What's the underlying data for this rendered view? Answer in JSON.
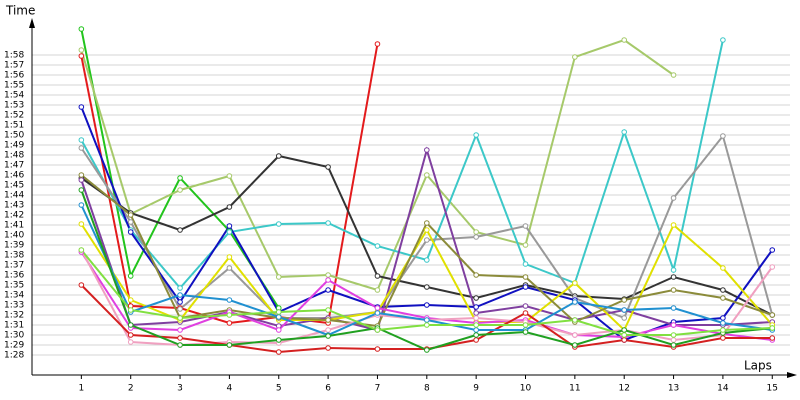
{
  "chart_data": {
    "type": "line",
    "ylabel": "Time",
    "xlabel": "Laps",
    "x": [
      1,
      2,
      3,
      4,
      5,
      6,
      7,
      8,
      9,
      10,
      11,
      12,
      13,
      14,
      15
    ],
    "xlim": [
      0,
      15.4
    ],
    "xticks": [
      1,
      2,
      3,
      4,
      5,
      6,
      7,
      8,
      9,
      10,
      11,
      12,
      13,
      14,
      15
    ],
    "ylim": [
      86,
      121
    ],
    "yticks": [
      {
        "value": 88,
        "label": "1:28"
      },
      {
        "value": 89,
        "label": "1:29"
      },
      {
        "value": 90,
        "label": "1:30"
      },
      {
        "value": 91,
        "label": "1:31"
      },
      {
        "value": 92,
        "label": "1:32"
      },
      {
        "value": 93,
        "label": "1:33"
      },
      {
        "value": 94,
        "label": "1:34"
      },
      {
        "value": 95,
        "label": "1:35"
      },
      {
        "value": 96,
        "label": "1:36"
      },
      {
        "value": 97,
        "label": "1:37"
      },
      {
        "value": 98,
        "label": "1:38"
      },
      {
        "value": 99,
        "label": "1:39"
      },
      {
        "value": 100,
        "label": "1:40"
      },
      {
        "value": 101,
        "label": "1:41"
      },
      {
        "value": 102,
        "label": "1:42"
      },
      {
        "value": 103,
        "label": "1:43"
      },
      {
        "value": 104,
        "label": "1:44"
      },
      {
        "value": 105,
        "label": "1:45"
      },
      {
        "value": 106,
        "label": "1:46"
      },
      {
        "value": 107,
        "label": "1:47"
      },
      {
        "value": 108,
        "label": "1:48"
      },
      {
        "value": 109,
        "label": "1:49"
      },
      {
        "value": 110,
        "label": "1:50"
      },
      {
        "value": 111,
        "label": "1:51"
      },
      {
        "value": 112,
        "label": "1:52"
      },
      {
        "value": 113,
        "label": "1:53"
      },
      {
        "value": 114,
        "label": "1:54"
      },
      {
        "value": 115,
        "label": "1:55"
      },
      {
        "value": 116,
        "label": "1:56"
      },
      {
        "value": 117,
        "label": "1:57"
      },
      {
        "value": 118,
        "label": "1:58"
      }
    ],
    "grid": true,
    "series": [
      {
        "color": "#e31a1c",
        "values": [
          117.9,
          92.9,
          92.7,
          91.2,
          91.8,
          91.2,
          119.1,
          null,
          null,
          null,
          null,
          null,
          null,
          null,
          null
        ]
      },
      {
        "color": "#22c41c",
        "values": [
          120.6,
          95.9,
          105.7,
          100.4,
          92.7,
          null,
          null,
          null,
          null,
          null,
          null,
          null,
          null,
          null,
          null
        ]
      },
      {
        "color": "#a6c96a",
        "values": [
          118.5,
          102.1,
          104.5,
          105.9,
          95.8,
          96.0,
          94.5,
          106.0,
          100.3,
          99.0,
          117.8,
          119.5,
          116.0,
          null,
          null
        ]
      },
      {
        "color": "#3cc8c8",
        "values": [
          109.5,
          100.5,
          94.7,
          100.3,
          101.1,
          101.2,
          98.9,
          97.5,
          110.0,
          97.1,
          95.2,
          110.3,
          96.5,
          119.5,
          null
        ]
      },
      {
        "color": "#333333",
        "values": [
          105.7,
          102.2,
          100.5,
          102.8,
          107.9,
          106.8,
          95.9,
          94.8,
          93.7,
          95.0,
          93.9,
          93.6,
          95.8,
          94.5,
          92.0
        ]
      },
      {
        "color": "#999999",
        "values": [
          108.7,
          101.3,
          92.6,
          96.7,
          91.7,
          91.7,
          92.3,
          99.5,
          99.8,
          100.9,
          93.7,
          91.7,
          103.7,
          109.9,
          92.0
        ]
      },
      {
        "color": "#1010c0",
        "values": [
          112.8,
          100.3,
          93.3,
          100.9,
          92.3,
          94.5,
          92.8,
          93.0,
          92.8,
          94.8,
          93.5,
          89.5,
          91.3,
          91.7,
          98.5
        ]
      },
      {
        "color": "#7f3f9f",
        "values": [
          105.5,
          91.0,
          91.3,
          92.3,
          90.9,
          91.7,
          90.5,
          108.5,
          92.2,
          92.9,
          91.5,
          92.5,
          91.0,
          91.0,
          91.3
        ]
      },
      {
        "color": "#e0e000",
        "values": [
          101.1,
          93.5,
          91.5,
          97.8,
          91.5,
          91.5,
          92.3,
          100.5,
          91.3,
          91.3,
          95.2,
          90.5,
          101.0,
          96.7,
          91.0
        ]
      },
      {
        "color": "#8b8b3a",
        "values": [
          106.0,
          102.0,
          91.7,
          92.5,
          91.7,
          91.5,
          90.9,
          101.2,
          96.0,
          95.8,
          91.3,
          93.5,
          94.5,
          93.7,
          92.0
        ]
      },
      {
        "color": "#e040e0",
        "values": [
          98.3,
          90.7,
          90.5,
          92.3,
          90.5,
          95.5,
          92.7,
          91.7,
          91.2,
          91.5,
          90.0,
          89.8,
          91.0,
          90.1,
          89.5
        ]
      },
      {
        "color": "#f0a0c0",
        "values": [
          98.5,
          89.3,
          89.0,
          89.3,
          89.2,
          90.5,
          92.0,
          91.5,
          91.7,
          91.3,
          90.0,
          90.5,
          89.5,
          90.0,
          96.8
        ]
      },
      {
        "color": "#d42020",
        "values": [
          95.0,
          90.0,
          89.7,
          89.0,
          88.3,
          88.7,
          88.6,
          88.6,
          89.5,
          92.2,
          88.8,
          89.5,
          88.8,
          89.7,
          89.7
        ]
      },
      {
        "color": "#2090d0",
        "values": [
          103.0,
          92.3,
          94.0,
          93.5,
          91.8,
          90.0,
          92.2,
          91.5,
          90.5,
          90.5,
          93.3,
          92.5,
          92.7,
          91.2,
          90.5
        ]
      },
      {
        "color": "#20a020",
        "values": [
          104.5,
          91.0,
          89.0,
          89.0,
          89.5,
          89.9,
          90.7,
          88.5,
          90.0,
          90.3,
          89.0,
          90.5,
          89.0,
          90.2,
          90.7
        ]
      },
      {
        "color": "#80e040",
        "values": [
          98.5,
          92.5,
          91.7,
          92.0,
          92.3,
          92.5,
          90.5,
          91.0,
          91.0,
          91.0,
          91.5,
          90.0,
          90.0,
          90.5,
          90.7
        ]
      }
    ]
  }
}
